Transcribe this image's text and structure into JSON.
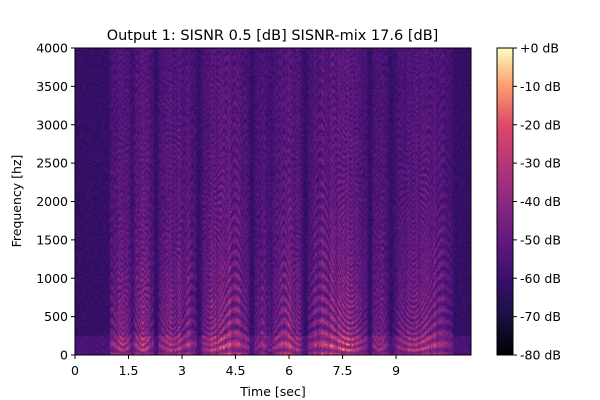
{
  "chart_data": {
    "type": "heatmap",
    "title": "Output 1: SISNR 0.5 [dB] SISNR-mix 17.6 [dB]",
    "xlabel": "Time [sec]",
    "ylabel": "Frequency [hz]",
    "xlim": [
      0,
      11.1
    ],
    "ylim": [
      0,
      4000
    ],
    "x_ticks": [
      0,
      1.5,
      3,
      4.5,
      6,
      7.5,
      9
    ],
    "x_tick_labels": [
      "0",
      "1.5",
      "3",
      "4.5",
      "6",
      "7.5",
      "9"
    ],
    "y_ticks": [
      0,
      500,
      1000,
      1500,
      2000,
      2500,
      3000,
      3500,
      4000
    ],
    "y_tick_labels": [
      "0",
      "500",
      "1000",
      "1500",
      "2000",
      "2500",
      "3000",
      "3500",
      "4000"
    ],
    "colorbar": {
      "colormap": "magma",
      "range_db": [
        -80,
        0
      ],
      "ticks": [
        0,
        -10,
        -20,
        -30,
        -40,
        -50,
        -60,
        -70,
        -80
      ],
      "tick_labels": [
        "+0 dB",
        "-10 dB",
        "-20 dB",
        "-30 dB",
        "-40 dB",
        "-50 dB",
        "-60 dB",
        "-70 dB",
        "-80 dB"
      ]
    },
    "grid": false,
    "speech_activity": [
      {
        "start": 0.95,
        "end": 1.6,
        "level": 0.75
      },
      {
        "start": 1.6,
        "end": 2.2,
        "level": 0.9
      },
      {
        "start": 2.3,
        "end": 3.4,
        "level": 0.85
      },
      {
        "start": 3.5,
        "end": 4.9,
        "level": 0.95
      },
      {
        "start": 5.0,
        "end": 5.5,
        "level": 0.55
      },
      {
        "start": 5.5,
        "end": 6.4,
        "level": 0.85
      },
      {
        "start": 6.5,
        "end": 8.2,
        "level": 1.0
      },
      {
        "start": 8.3,
        "end": 8.8,
        "level": 0.65
      },
      {
        "start": 8.9,
        "end": 10.6,
        "level": 0.8
      }
    ],
    "noise_floor_db": -62,
    "peak_db": -5
  }
}
